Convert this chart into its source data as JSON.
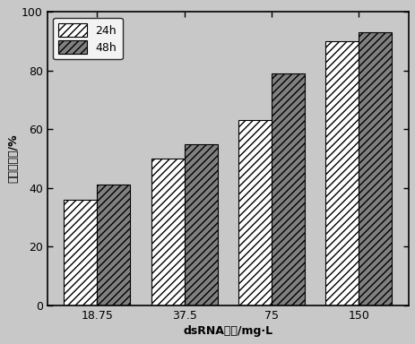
{
  "categories": [
    "18.75",
    "37.5",
    "75",
    "150"
  ],
  "values_24h": [
    36,
    50,
    63,
    90
  ],
  "values_48h": [
    41,
    55,
    79,
    93
  ],
  "xlabel": "dsRNA浓度/mg·L",
  "ylabel": "校正死亡率/%",
  "ylim": [
    0,
    100
  ],
  "yticks": [
    0,
    20,
    40,
    60,
    80,
    100
  ],
  "legend_24h": "24h",
  "legend_48h": "48h",
  "bar_width": 0.38,
  "hatch_24h": "////",
  "hatch_48h": "////",
  "facecolor_24h": "#ffffff",
  "facecolor_48h": "#808080",
  "edge_color": "#000000",
  "axis_fontsize": 9,
  "tick_fontsize": 9,
  "legend_fontsize": 9,
  "background": "#c8c8c8"
}
